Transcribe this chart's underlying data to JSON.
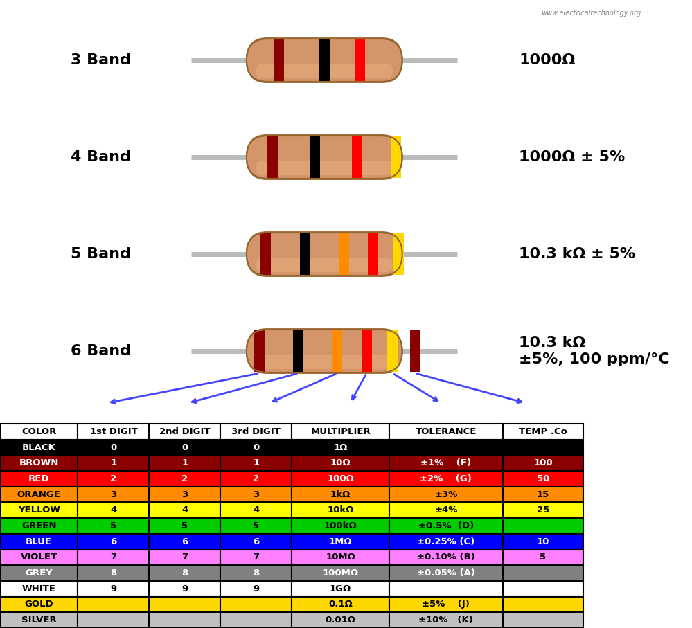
{
  "title_watermark": "www.electricaltechnology.org",
  "band_labels": [
    "3 Band",
    "4 Band",
    "5 Band",
    "6 Band"
  ],
  "band_values": [
    "1000Ω",
    "1000Ω ± 5%",
    "10.3 kΩ ± 5%",
    "10.3 kΩ\n±5%, 100 ppm/°C"
  ],
  "resistor_body_color": "#D4956A",
  "resistor_body_dark": "#C4855A",
  "wire_color": "#AAAAAA",
  "table_headers": [
    "COLOR",
    "1st DIGIT",
    "2nd DIGIT",
    "3rd DIGIT",
    "MULTIPLIER",
    "TOLERANCE",
    "TEMP .Co"
  ],
  "colors": [
    "BLACK",
    "BROWN",
    "RED",
    "ORANGE",
    "YELLOW",
    "GREEN",
    "BLUE",
    "VIOLET",
    "GREY",
    "WHITE",
    "GOLD",
    "SILVER"
  ],
  "row_bg_colors": [
    "#000000",
    "#8B0000",
    "#FF0000",
    "#FF8C00",
    "#FFFF00",
    "#00CC00",
    "#0000FF",
    "#FF80FF",
    "#808080",
    "#FFFFFF",
    "#FFD700",
    "#C0C0C0"
  ],
  "row_text_colors": [
    "#FFFFFF",
    "#FFFFFF",
    "#FFFFFF",
    "#000000",
    "#000000",
    "#000000",
    "#FFFFFF",
    "#000000",
    "#FFFFFF",
    "#000000",
    "#000000",
    "#000000"
  ],
  "digit1": [
    "0",
    "1",
    "2",
    "3",
    "4",
    "5",
    "6",
    "7",
    "8",
    "9",
    "",
    ""
  ],
  "digit2": [
    "0",
    "1",
    "2",
    "3",
    "4",
    "5",
    "6",
    "7",
    "8",
    "9",
    "",
    ""
  ],
  "digit3": [
    "0",
    "1",
    "2",
    "3",
    "4",
    "5",
    "6",
    "7",
    "8",
    "9",
    "",
    ""
  ],
  "multiplier": [
    "1Ω",
    "10Ω",
    "100Ω",
    "1kΩ",
    "10kΩ",
    "100kΩ",
    "1MΩ",
    "10MΩ",
    "100MΩ",
    "1GΩ",
    "0.1Ω",
    "0.01Ω"
  ],
  "tolerance": [
    "",
    "±1%    (F)",
    "±2%    (G)",
    "±3%",
    "±4%",
    "±0.5%  (D)",
    "±0.25% (C)",
    "±0.10% (B)",
    "±0.05% (A)",
    "",
    "±5%    (J)",
    "±10%   (K)"
  ],
  "temp": [
    "",
    "100",
    "50",
    "15",
    "25",
    "",
    "10",
    "5",
    "",
    "",
    "",
    ""
  ],
  "arrow_color": "#4444FF",
  "band3_colors": [
    "#8B0000",
    "#000000",
    "#FF0000"
  ],
  "band4_colors": [
    "#8B0000",
    "#000000",
    "#FF0000",
    "#FFD700"
  ],
  "band5_colors": [
    "#8B0000",
    "#000000",
    "#FF8C00",
    "#FF0000",
    "#FFD700"
  ],
  "band6_colors": [
    "#8B0000",
    "#000000",
    "#FF8C00",
    "#FF0000",
    "#FFD700",
    "#8B0000"
  ]
}
